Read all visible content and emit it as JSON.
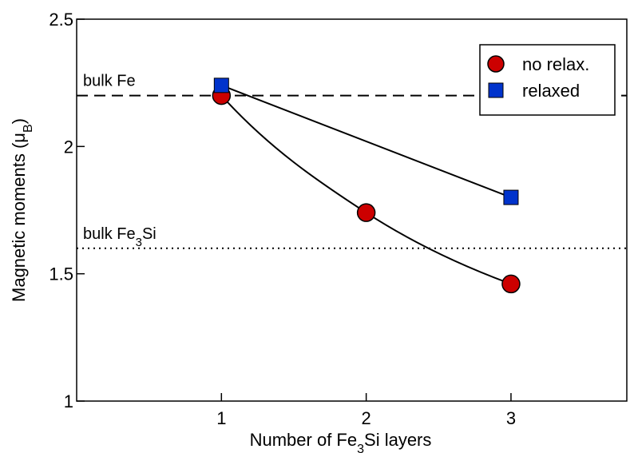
{
  "chart_data": {
    "type": "line",
    "xlabel": {
      "prefix": "Number of Fe",
      "sub": "3",
      "suffix": "Si layers"
    },
    "ylabel": {
      "prefix": "Magnetic moments (μ",
      "sub": "B",
      "suffix": ")"
    },
    "xlim": [
      0,
      3.8
    ],
    "ylim": [
      1,
      2.5
    ],
    "x_ticks": [
      1,
      2,
      3
    ],
    "x_tick_labels": [
      "1",
      "2",
      "3"
    ],
    "y_ticks": [
      1,
      1.5,
      2,
      2.5
    ],
    "y_tick_labels": [
      "1",
      "1.5",
      "2",
      "2.5"
    ],
    "grid": false,
    "legend_position": "top-right",
    "series": [
      {
        "name": "no relax.",
        "marker": "circle",
        "color": "#cc0000",
        "x": [
          1,
          2,
          3
        ],
        "y": [
          2.2,
          1.74,
          1.46
        ]
      },
      {
        "name": "relaxed",
        "marker": "square",
        "color": "#0033cc",
        "x": [
          1,
          3
        ],
        "y": [
          2.24,
          1.8
        ]
      }
    ],
    "reference_lines": [
      {
        "name": "bulk Fe",
        "label": {
          "prefix": "bulk Fe",
          "sub": "",
          "suffix": ""
        },
        "y": 2.2,
        "style": "dashed"
      },
      {
        "name": "bulk Fe3Si",
        "label": {
          "prefix": "bulk Fe",
          "sub": "3",
          "suffix": "Si"
        },
        "y": 1.6,
        "style": "dotted"
      }
    ]
  }
}
